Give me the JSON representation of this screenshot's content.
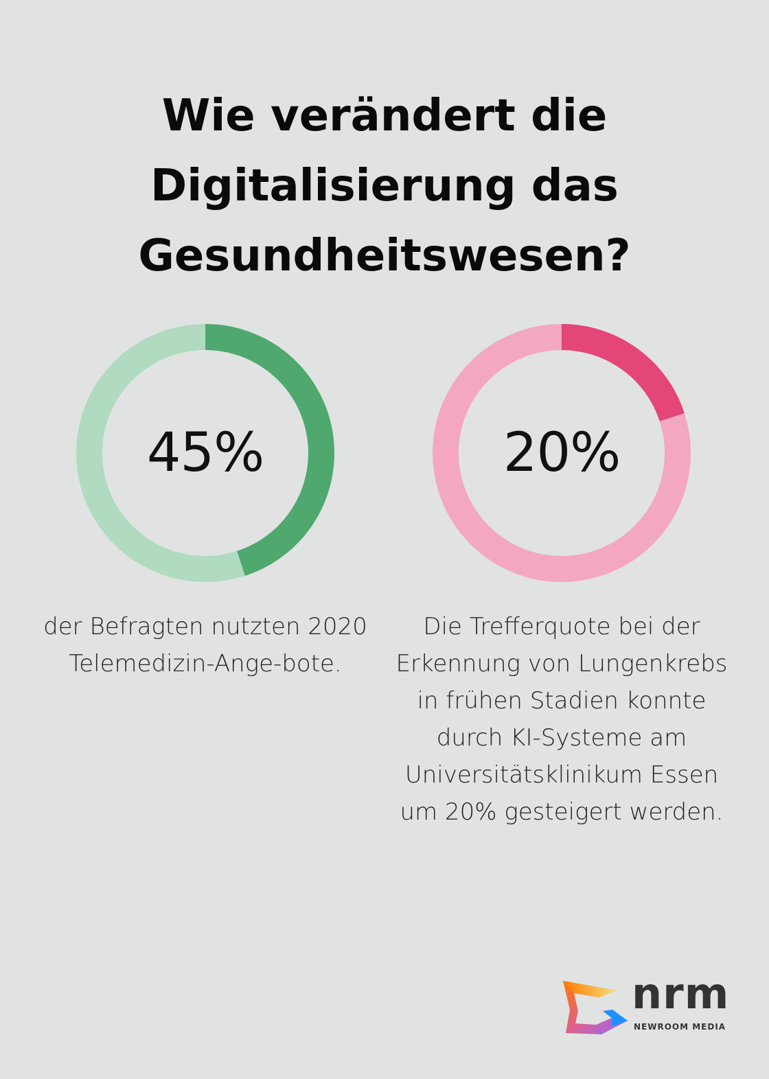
{
  "title": "Wie verändert die Digitalisierung das Gesundheitswesen?",
  "chart_data": [
    {
      "type": "pie",
      "variant": "donut",
      "value": 45,
      "unit": "%",
      "label": "45%",
      "description": "der Befragten nutzten 2020 Telemedizin-Ange-bote.",
      "colors": {
        "filled": "#4fa86e",
        "remaining": "#b0dbc0"
      }
    },
    {
      "type": "pie",
      "variant": "donut",
      "value": 20,
      "unit": "%",
      "label": "20%",
      "description": "Die Trefferquote bei der Erkennung von Lungenkrebs in frühen Stadien konnte durch KI-Systeme am Universitätsklinikum Essen um 20% gesteigert werden.",
      "colors": {
        "filled": "#e34677",
        "remaining": "#f3a8c0"
      }
    }
  ],
  "logo": {
    "name": "nrm",
    "subtitle": "NEWROOM MEDIA"
  }
}
